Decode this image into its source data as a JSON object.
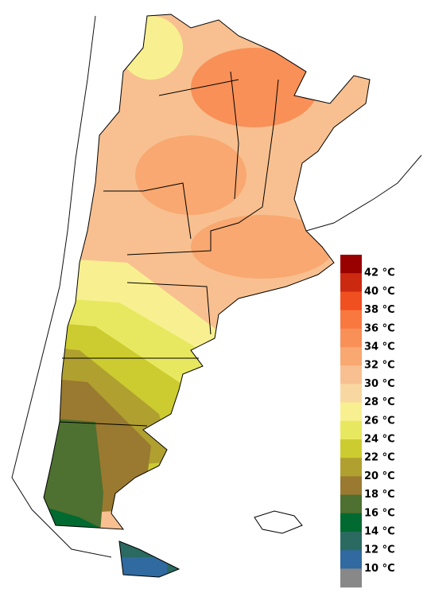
{
  "legend": {
    "labels": [
      "42 °C",
      "40 °C",
      "38 °C",
      "36 °C",
      "34 °C",
      "32 °C",
      "30 °C",
      "28 °C",
      "26 °C",
      "24 °C",
      "22 °C",
      "20 °C",
      "18 °C",
      "16 °C",
      "14 °C",
      "12 °C",
      "10 °C"
    ],
    "colors": [
      "#990000",
      "#cc2a10",
      "#f05020",
      "#f87840",
      "#f89058",
      "#f8a870",
      "#f8c090",
      "#f8d8a0",
      "#f8f090",
      "#e8e860",
      "#cccc30",
      "#b0a030",
      "#9a7a30",
      "#4e7030",
      "#006a30",
      "#2a6a60",
      "#306aa0",
      "#888888"
    ]
  }
}
